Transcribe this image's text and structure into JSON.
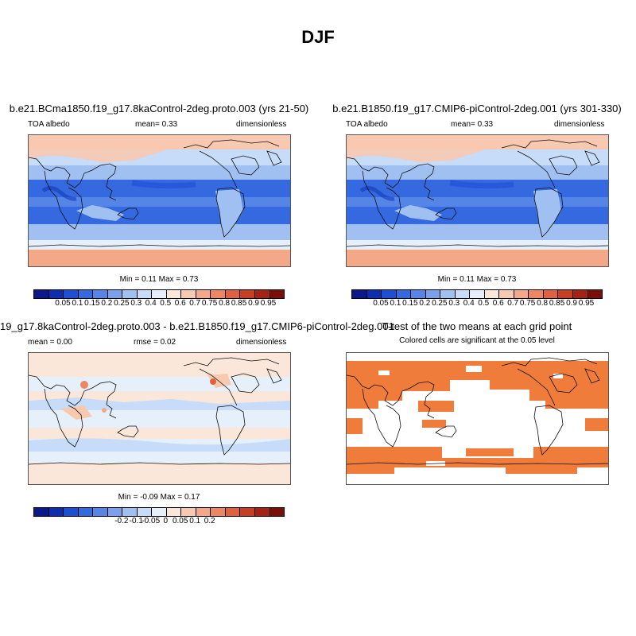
{
  "title": "DJF",
  "panel1": {
    "title": "b.e21.BCma1850.f19_g17.8kaControl-2deg.proto.003 (yrs 21-50)",
    "left": "TOA albedo",
    "center": "mean=   0.33",
    "right": "dimensionless",
    "minmax": "Min =   0.11 Max =   0.73"
  },
  "panel2": {
    "title": "b.e21.B1850.f19_g17.CMIP6-piControl-2deg.001 (yrs 301-330)",
    "left": "TOA albedo",
    "center": "mean=   0.33",
    "right": "dimensionless",
    "minmax": "Min =   0.11 Max =   0.73"
  },
  "panel3": {
    "title": "19_g17.8kaControl-2deg.proto.003 - b.e21.B1850.f19_g17.CMIP6-piControl-2deg.001",
    "left": "mean =   0.00",
    "center": "rmse =   0.02",
    "right": "dimensionless",
    "minmax": "Min =  -0.09 Max =   0.17"
  },
  "panel4": {
    "title": "T-test of the two means at each grid point",
    "subtitle": "Colored cells are significant at the 0.05 level"
  },
  "colorbar_abs": {
    "colors": [
      "#0a1a8c",
      "#0b2fb0",
      "#1a4fd6",
      "#3569e0",
      "#5585e6",
      "#7aa2ec",
      "#a1c0f2",
      "#c6dcf8",
      "#e6f0fb",
      "#fbe6da",
      "#f7c9b0",
      "#f3a888",
      "#ee8662",
      "#e0613f",
      "#c93e22",
      "#a72212",
      "#7a0f0a"
    ],
    "labels": [
      "0.05",
      "0.1",
      "0.15",
      "0.2",
      "0.25",
      "0.3",
      "0.4",
      "0.5",
      "0.6",
      "0.7",
      "0.75",
      "0.8",
      "0.85",
      "0.9",
      "0.95"
    ]
  },
  "colorbar_diff": {
    "colors": [
      "#0a1a8c",
      "#0b2fb0",
      "#1a4fd6",
      "#3569e0",
      "#5585e6",
      "#7aa2ec",
      "#a1c0f2",
      "#c6dcf8",
      "#e6f0fb",
      "#fbe6da",
      "#f7c9b0",
      "#f3a888",
      "#ee8662",
      "#e0613f",
      "#c93e22",
      "#a72212",
      "#7a0f0a"
    ],
    "labels": [
      "-0.2",
      "-0.1",
      "-0.05",
      "0",
      "0.05",
      "0.1",
      "0.2"
    ]
  },
  "colors": {
    "significant": "#f07c3c"
  }
}
